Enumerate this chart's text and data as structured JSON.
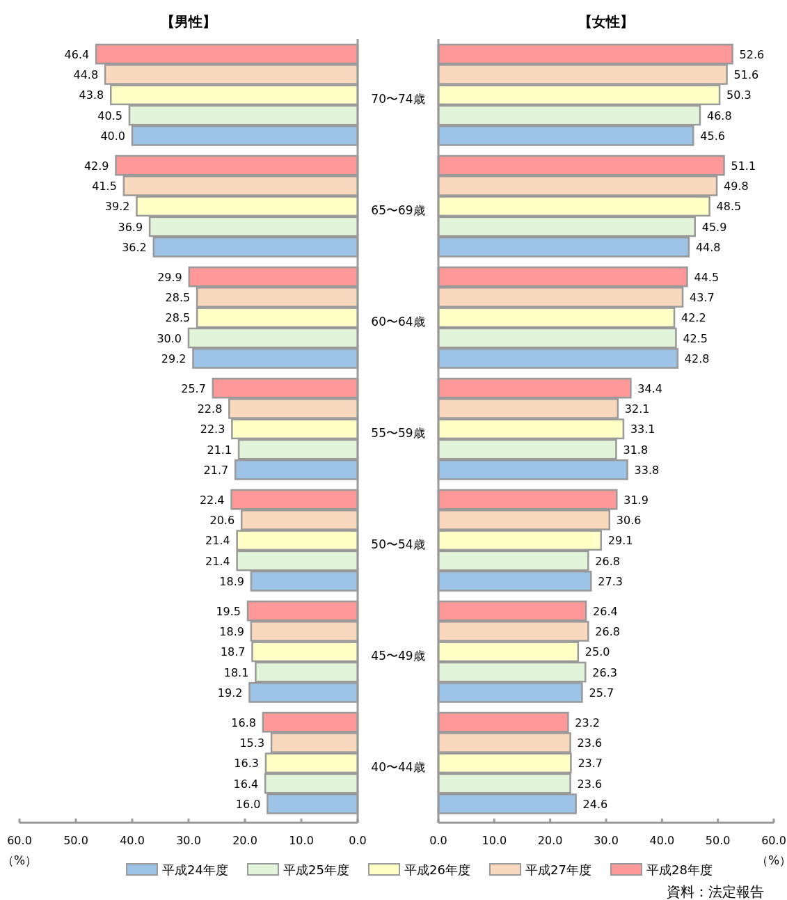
{
  "chart_data": [
    {
      "type": "bar",
      "orientation": "horizontal",
      "title": "【男性】",
      "xlabel": "（%）",
      "categories": [
        "70〜74歳",
        "65〜69歳",
        "60〜64歳",
        "55〜59歳",
        "50〜54歳",
        "45〜49歳",
        "40〜44歳"
      ],
      "xlim": [
        60,
        0
      ],
      "xticks": [
        {
          "value": 60,
          "label": "60.0"
        },
        {
          "value": 50,
          "label": "50.0"
        },
        {
          "value": 40,
          "label": "40.0"
        },
        {
          "value": 30,
          "label": "30.0"
        },
        {
          "value": 20,
          "label": "20.0"
        },
        {
          "value": 10,
          "label": "10.0"
        },
        {
          "value": 0,
          "label": "0.0"
        }
      ],
      "series": [
        {
          "name": "平成24年度",
          "color": "#9dc3e6",
          "values": [
            40.0,
            36.2,
            29.2,
            21.7,
            18.9,
            19.2,
            16.0
          ],
          "value_labels": [
            "40.0",
            "36.2",
            "29.2",
            "21.7",
            "18.9",
            "19.2",
            "16.0"
          ]
        },
        {
          "name": "平成25年度",
          "color": "#e2f4d9",
          "values": [
            40.5,
            36.9,
            30.0,
            21.1,
            21.4,
            18.1,
            16.4
          ],
          "value_labels": [
            "40.5",
            "36.9",
            "30.0",
            "21.1",
            "21.4",
            "18.1",
            "16.4"
          ]
        },
        {
          "name": "平成26年度",
          "color": "#ffffc6",
          "values": [
            43.8,
            39.2,
            28.5,
            22.3,
            21.4,
            18.7,
            16.3
          ],
          "value_labels": [
            "43.8",
            "39.2",
            "28.5",
            "22.3",
            "21.4",
            "18.7",
            "16.3"
          ]
        },
        {
          "name": "平成27年度",
          "color": "#f8d9bd",
          "values": [
            44.8,
            41.5,
            28.5,
            22.8,
            20.6,
            18.9,
            15.3
          ],
          "value_labels": [
            "44.8",
            "41.5",
            "28.5",
            "22.8",
            "20.6",
            "18.9",
            "15.3"
          ]
        },
        {
          "name": "平成28年度",
          "color": "#ff9999",
          "values": [
            46.4,
            42.9,
            29.9,
            25.7,
            22.4,
            19.5,
            16.8
          ],
          "value_labels": [
            "46.4",
            "42.9",
            "29.9",
            "25.7",
            "22.4",
            "19.5",
            "16.8"
          ]
        }
      ],
      "legend": "bottom"
    },
    {
      "type": "bar",
      "orientation": "horizontal",
      "title": "【女性】",
      "xlabel": "（%）",
      "xlim": [
        0,
        60
      ],
      "xticks": [
        {
          "value": 0,
          "label": "0.0"
        },
        {
          "value": 10,
          "label": "10.0"
        },
        {
          "value": 20,
          "label": "20.0"
        },
        {
          "value": 30,
          "label": "30.0"
        },
        {
          "value": 40,
          "label": "40.0"
        },
        {
          "value": 50,
          "label": "50.0"
        },
        {
          "value": 60,
          "label": "60.0"
        }
      ],
      "series": [
        {
          "color": "#9dc3e6",
          "values": [
            45.6,
            44.8,
            42.8,
            33.8,
            27.3,
            25.7,
            24.6
          ],
          "value_labels": [
            "45.6",
            "44.8",
            "42.8",
            "33.8",
            "27.3",
            "25.7",
            "24.6"
          ]
        },
        {
          "color": "#e2f4d9",
          "values": [
            46.8,
            45.9,
            42.5,
            31.8,
            26.8,
            26.3,
            23.6
          ],
          "value_labels": [
            "46.8",
            "45.9",
            "42.5",
            "31.8",
            "26.8",
            "26.3",
            "23.6"
          ]
        },
        {
          "color": "#ffffc6",
          "values": [
            50.3,
            48.5,
            42.2,
            33.1,
            29.1,
            25.0,
            23.7
          ],
          "value_labels": [
            "50.3",
            "48.5",
            "42.2",
            "33.1",
            "29.1",
            "25.0",
            "23.7"
          ]
        },
        {
          "color": "#f8d9bd",
          "values": [
            51.6,
            49.8,
            43.7,
            32.1,
            30.6,
            26.8,
            23.6
          ],
          "value_labels": [
            "51.6",
            "49.8",
            "43.7",
            "32.1",
            "30.6",
            "26.8",
            "23.6"
          ]
        },
        {
          "color": "#ff9999",
          "values": [
            52.6,
            51.1,
            44.5,
            34.4,
            31.9,
            26.4,
            23.2
          ],
          "value_labels": [
            "52.6",
            "51.1",
            "44.5",
            "34.4",
            "31.9",
            "26.4",
            "23.2"
          ]
        }
      ],
      "annotations": [
        "資料：法定報告"
      ]
    }
  ]
}
